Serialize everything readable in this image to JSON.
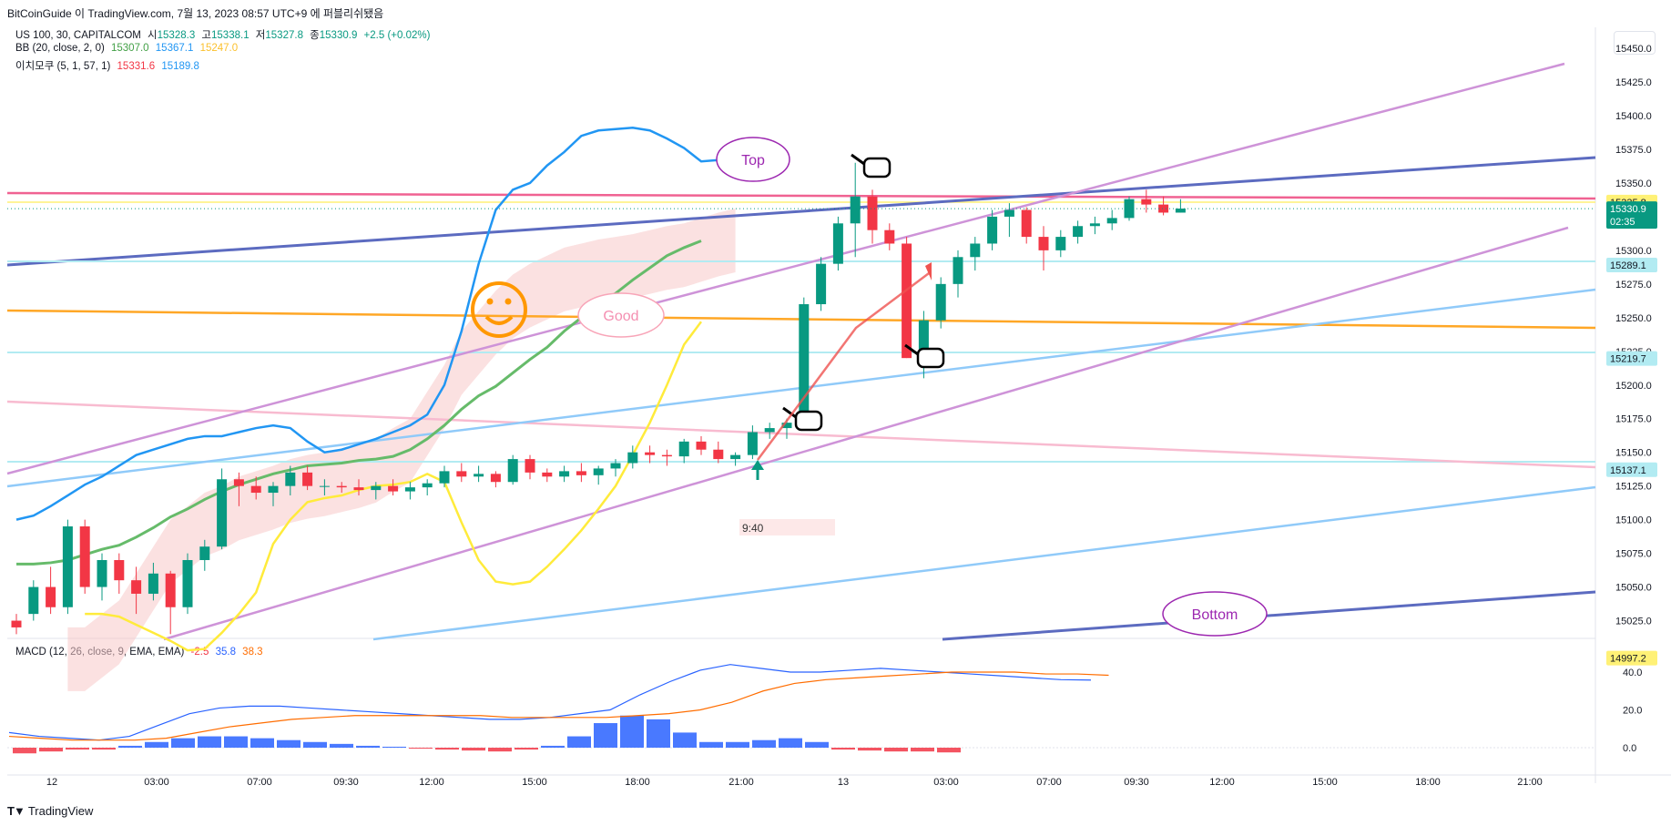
{
  "header": {
    "publish_line": "BitCoinGuide 이 TradingView.com, 7월 13, 2023 08:57 UTC+9 에 퍼블리쉬됐음"
  },
  "legend": {
    "symbol": "US 100, 30, CAPITALCOM",
    "open_label": "시",
    "open": "15328.3",
    "high_label": "고",
    "high": "15338.1",
    "low_label": "저",
    "low": "15327.8",
    "close_label": "종",
    "close": "15330.9",
    "change": "+2.5 (+0.02%)",
    "bb_label": "BB (20, close, 2, 0)",
    "bb_basis": "15307.0",
    "bb_upper": "15367.1",
    "bb_lower": "15247.0",
    "ichimoku_label": "이치모쿠 (5, 1, 57, 1)",
    "ichi_a": "15331.6",
    "ichi_b": "15189.8",
    "macd_label": "MACD (12, 26, close, 9, EMA, EMA)",
    "macd_hist": "-2.5",
    "macd_line": "35.8",
    "macd_signal": "38.3"
  },
  "footer": {
    "brand": "TradingView"
  },
  "chart_data": {
    "type": "candlestick",
    "y_axis_ticks": [
      "15450.0",
      "15425.0",
      "15400.0",
      "15375.0",
      "15350.0",
      "15325.0",
      "15300.0",
      "15275.0",
      "15250.0",
      "15225.0",
      "15200.0",
      "15175.0",
      "15150.0",
      "15125.0",
      "15100.0",
      "15075.0",
      "15050.0",
      "15025.0",
      "15000.0"
    ],
    "macd_axis_ticks": [
      "40.0",
      "20.0",
      "0.0"
    ],
    "x_axis_ticks": [
      "12",
      "03:00",
      "07:00",
      "09:30",
      "12:00",
      "15:00",
      "18:00",
      "21:00",
      "13",
      "03:00",
      "07:00",
      "09:30",
      "12:00",
      "15:00",
      "18:00",
      "21:00"
    ],
    "price_tags": [
      {
        "label": "15335.8",
        "bg": "#fff176",
        "fg": "#131722"
      },
      {
        "label": "15330.9",
        "sub": "02:35",
        "bg": "#089981",
        "fg": "#ffffff"
      },
      {
        "label": "15289.1",
        "bg": "#b2ebf2",
        "fg": "#131722"
      },
      {
        "label": "15219.7",
        "bg": "#b2ebf2",
        "fg": "#131722"
      },
      {
        "label": "15137.1",
        "bg": "#b2ebf2",
        "fg": "#131722"
      },
      {
        "label": "14997.2",
        "bg": "#fff176",
        "fg": "#131722"
      }
    ],
    "annotations": [
      "Top",
      "Good",
      "Bottom",
      "9:40"
    ],
    "candles": [
      [
        15025,
        15030,
        15015,
        15020
      ],
      [
        15030,
        15055,
        15025,
        15050
      ],
      [
        15050,
        15065,
        15030,
        15035
      ],
      [
        15035,
        15100,
        15030,
        15095
      ],
      [
        15095,
        15100,
        15045,
        15050
      ],
      [
        15050,
        15075,
        15040,
        15070
      ],
      [
        15070,
        15075,
        15045,
        15055
      ],
      [
        15055,
        15065,
        15030,
        15045
      ],
      [
        15045,
        15068,
        15040,
        15060
      ],
      [
        15060,
        15062,
        15015,
        15035
      ],
      [
        15035,
        15075,
        15030,
        15070
      ],
      [
        15070,
        15085,
        15062,
        15080
      ],
      [
        15080,
        15138,
        15078,
        15130
      ],
      [
        15130,
        15135,
        15110,
        15125
      ],
      [
        15125,
        15132,
        15115,
        15120
      ],
      [
        15120,
        15128,
        15110,
        15125
      ],
      [
        15125,
        15140,
        15118,
        15135
      ],
      [
        15135,
        15140,
        15122,
        15125
      ],
      [
        15125,
        15130,
        15118,
        15125
      ],
      [
        15125,
        15128,
        15120,
        15124
      ],
      [
        15124,
        15130,
        15118,
        15122
      ],
      [
        15122,
        15128,
        15115,
        15125
      ],
      [
        15125,
        15130,
        15118,
        15121
      ],
      [
        15121,
        15128,
        15115,
        15124
      ],
      [
        15124,
        15130,
        15118,
        15127
      ],
      [
        15127,
        15140,
        15124,
        15136
      ],
      [
        15136,
        15142,
        15128,
        15132
      ],
      [
        15132,
        15140,
        15128,
        15134
      ],
      [
        15134,
        15136,
        15124,
        15128
      ],
      [
        15128,
        15148,
        15126,
        15145
      ],
      [
        15145,
        15148,
        15130,
        15135
      ],
      [
        15135,
        15138,
        15128,
        15132
      ],
      [
        15132,
        15140,
        15128,
        15136
      ],
      [
        15136,
        15142,
        15128,
        15133
      ],
      [
        15133,
        15140,
        15126,
        15138
      ],
      [
        15138,
        15145,
        15132,
        15142
      ],
      [
        15142,
        15155,
        15138,
        15150
      ],
      [
        15150,
        15155,
        15142,
        15148
      ],
      [
        15148,
        15152,
        15140,
        15147
      ],
      [
        15147,
        15160,
        15142,
        15158
      ],
      [
        15158,
        15162,
        15148,
        15152
      ],
      [
        15152,
        15158,
        15142,
        15145
      ],
      [
        15145,
        15150,
        15140,
        15148
      ],
      [
        15148,
        15170,
        15145,
        15165
      ],
      [
        15165,
        15172,
        15160,
        15168
      ],
      [
        15168,
        15175,
        15160,
        15172
      ],
      [
        15172,
        15265,
        15168,
        15260
      ],
      [
        15260,
        15295,
        15255,
        15290
      ],
      [
        15290,
        15325,
        15285,
        15320
      ],
      [
        15320,
        15365,
        15295,
        15340
      ],
      [
        15340,
        15345,
        15305,
        15315
      ],
      [
        15315,
        15320,
        15300,
        15305
      ],
      [
        15305,
        15310,
        15220,
        15220
      ],
      [
        15220,
        15255,
        15205,
        15248
      ],
      [
        15248,
        15280,
        15242,
        15275
      ],
      [
        15275,
        15300,
        15265,
        15295
      ],
      [
        15295,
        15310,
        15285,
        15305
      ],
      [
        15305,
        15330,
        15300,
        15325
      ],
      [
        15325,
        15335,
        15310,
        15330
      ],
      [
        15330,
        15332,
        15305,
        15310
      ],
      [
        15310,
        15318,
        15285,
        15300
      ],
      [
        15300,
        15315,
        15295,
        15310
      ],
      [
        15310,
        15322,
        15305,
        15318
      ],
      [
        15318,
        15325,
        15312,
        15320
      ],
      [
        15320,
        15330,
        15315,
        15324
      ],
      [
        15324,
        15340,
        15322,
        15338
      ],
      [
        15338,
        15345,
        15328,
        15334
      ],
      [
        15334,
        15340,
        15326,
        15328
      ],
      [
        15328,
        15338,
        15328,
        15331
      ]
    ],
    "bb_upper": [
      15100,
      15103,
      15110,
      15118,
      15126,
      15132,
      15140,
      15148,
      15152,
      15156,
      15160,
      15162,
      15162,
      15165,
      15168,
      15170,
      15168,
      15158,
      15150,
      15152,
      15156,
      15160,
      15165,
      15170,
      15178,
      15200,
      15240,
      15290,
      15330,
      15345,
      15350,
      15363,
      15373,
      15385,
      15389,
      15390,
      15391,
      15389,
      15383,
      15376,
      15366,
      15367
    ],
    "bb_basis": [
      15067,
      15067,
      15068,
      15070,
      15074,
      15078,
      15081,
      15087,
      15094,
      15102,
      15108,
      15115,
      15121,
      15126,
      15130,
      15134,
      15137,
      15140,
      15141,
      15142,
      15144,
      15145,
      15147,
      15152,
      15160,
      15170,
      15182,
      15192,
      15199,
      15209,
      15219,
      15228,
      15240,
      15250,
      15260,
      15268,
      15278,
      15287,
      15296,
      15302,
      15307
    ],
    "bb_lower": [
      15030,
      15030,
      15028,
      15022,
      15016,
      15010,
      15003,
      15004,
      15016,
      15030,
      15046,
      15082,
      15100,
      15113,
      15116,
      15118,
      15122,
      15125,
      15126,
      15128,
      15134,
      15128,
      15098,
      15070,
      15054,
      15052,
      15054,
      15065,
      15078,
      15092,
      15108,
      15125,
      15148,
      15172,
      15200,
      15230,
      15247
    ],
    "ichi_cloud": [
      15020,
      15020,
      15030,
      15040,
      15060,
      15080,
      15100,
      15110,
      15120,
      15125,
      15132,
      15136,
      15140,
      15145,
      15148,
      15150,
      15153,
      15156,
      15160,
      15168,
      15175,
      15195,
      15215,
      15240,
      15255,
      15270,
      15282,
      15290,
      15296,
      15302,
      15305,
      15308,
      15310,
      15312,
      15315,
      15318,
      15320,
      15324,
      15328,
      15331
    ],
    "macd_line": [
      8,
      6,
      5,
      4,
      6,
      12,
      18,
      21,
      22,
      22,
      21,
      20,
      19,
      18,
      17,
      16,
      15,
      15,
      16,
      18,
      20,
      28,
      35,
      41,
      44,
      42,
      40,
      40,
      41,
      42,
      41,
      40,
      39,
      38,
      37,
      36,
      35.8
    ],
    "macd_signal": [
      6,
      5,
      4,
      4,
      4,
      5,
      8,
      11,
      13,
      15,
      16,
      17,
      17,
      17,
      17,
      17,
      16,
      16,
      16,
      16,
      17,
      18,
      20,
      24,
      30,
      34,
      36,
      37,
      38,
      39,
      40,
      40,
      40,
      39,
      39,
      38.3
    ],
    "macd_hist": [
      -3,
      -2,
      -1,
      -1,
      1,
      3,
      5,
      6,
      6,
      5,
      4,
      3,
      2,
      1,
      0.5,
      -0.5,
      -1,
      -1.5,
      -2,
      -1,
      1,
      6,
      13,
      17,
      15,
      8,
      3,
      3,
      4,
      5,
      3,
      -1,
      -1.5,
      -2,
      -2,
      -2.5
    ]
  }
}
